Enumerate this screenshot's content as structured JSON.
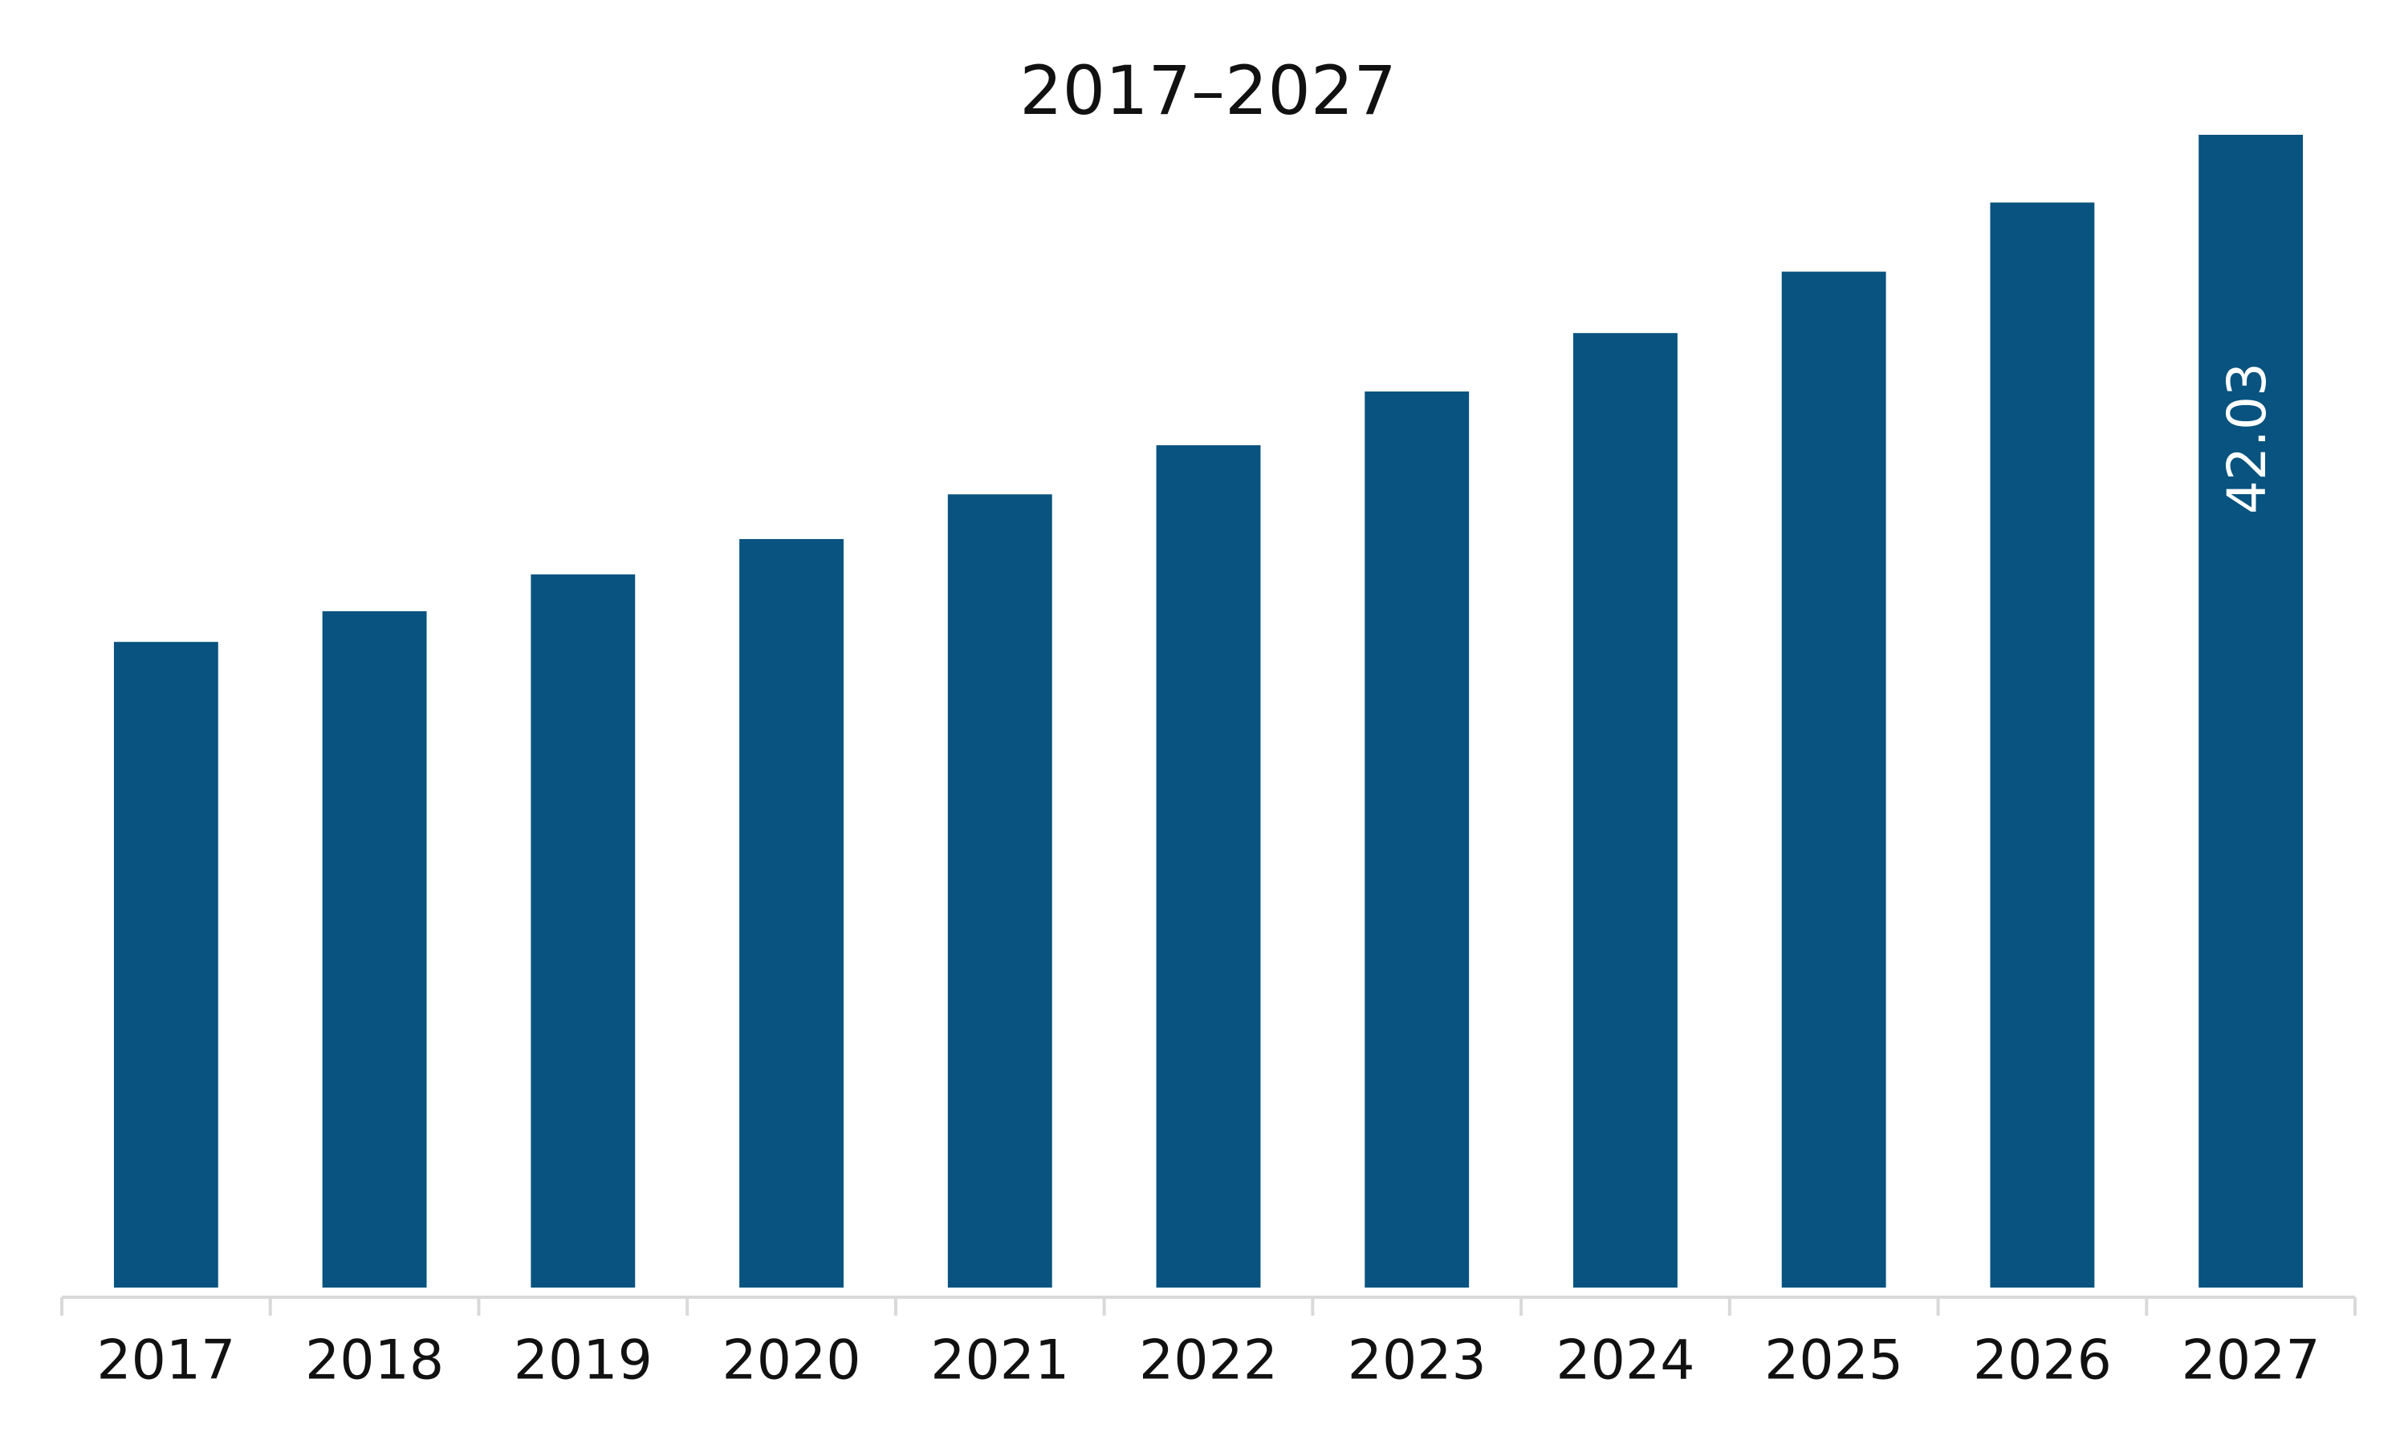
{
  "chart_data": {
    "type": "bar",
    "title": "2017–2027",
    "categories": [
      "2017",
      "2018",
      "2019",
      "2020",
      "2021",
      "2022",
      "2023",
      "2024",
      "2025",
      "2026",
      "2027"
    ],
    "values": [
      23.54,
      24.66,
      26.0,
      27.29,
      28.92,
      30.71,
      32.67,
      34.8,
      37.04,
      39.56,
      42.03
    ],
    "value_labels": [
      null,
      null,
      null,
      null,
      null,
      null,
      null,
      null,
      null,
      null,
      "42.03"
    ],
    "color": "#08537f"
  }
}
